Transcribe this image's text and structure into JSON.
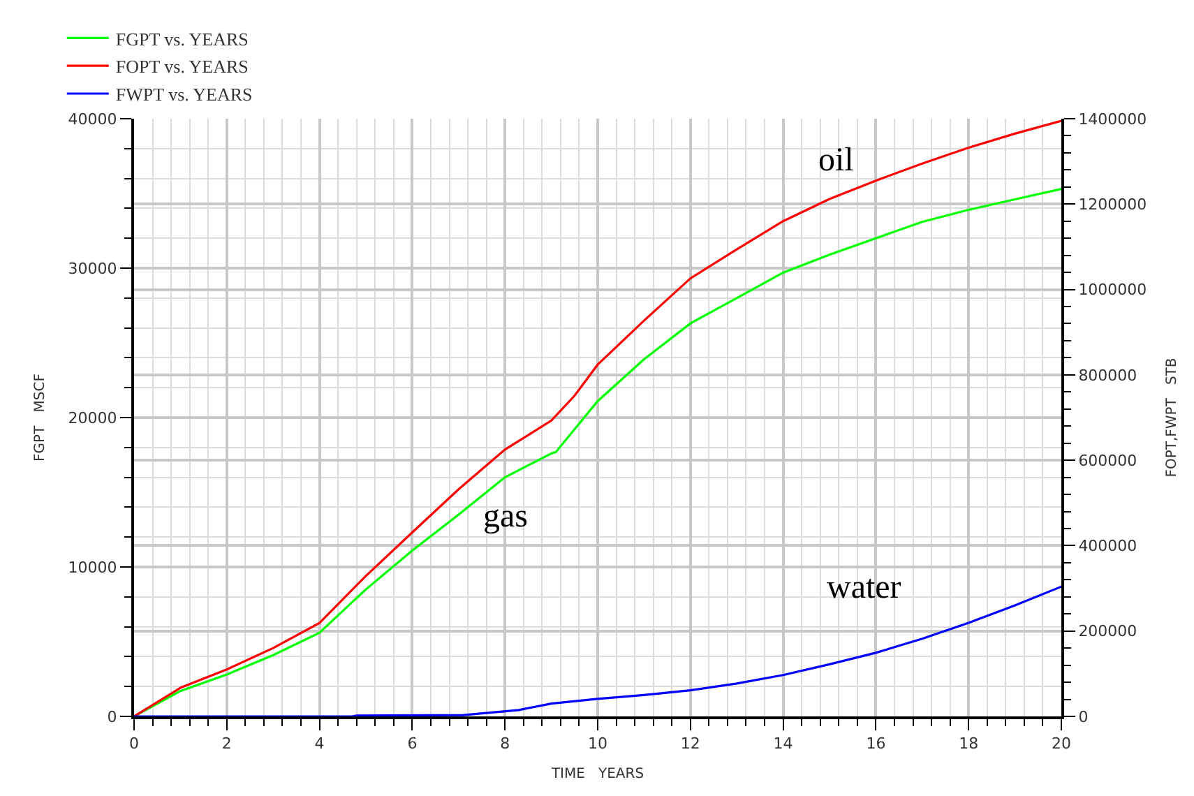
{
  "chart_data": {
    "type": "line",
    "xlabel": "TIME   YEARS",
    "ylabel": "FGPT   MSCF",
    "y2label": "FOPT,FWPT   STB",
    "xlim": [
      0,
      20
    ],
    "xticks": [
      0,
      2,
      4,
      6,
      8,
      10,
      12,
      14,
      16,
      18,
      20
    ],
    "ylim": [
      0,
      40000
    ],
    "yticks": [
      0,
      10000,
      20000,
      30000,
      40000
    ],
    "y2lim": [
      0,
      1400000
    ],
    "y2ticks": [
      0,
      200000,
      400000,
      600000,
      800000,
      1000000,
      1200000,
      1400000
    ],
    "grid": true,
    "legend": "top left",
    "line_style": "solid",
    "marker": "none",
    "series": [
      {
        "name": "FGPT vs. YEARS",
        "color": "#00ff00",
        "x": [
          0,
          1,
          2,
          3,
          4,
          5,
          6,
          7,
          8,
          9,
          9.1,
          10,
          11,
          12,
          13,
          14,
          15,
          16,
          17,
          18,
          19,
          20
        ],
        "values": [
          0,
          1700,
          2800,
          4100,
          5600,
          8500,
          11100,
          13500,
          16000,
          17600,
          17700,
          21100,
          23900,
          26300,
          28000,
          29700,
          30900,
          32000,
          33100,
          33900,
          34600,
          35300
        ]
      },
      {
        "name": "FOPT vs. YEARS",
        "color": "#ff0000",
        "axis": "y2",
        "x": [
          0,
          1,
          2,
          3,
          4,
          5,
          6,
          7,
          8,
          9,
          9.5,
          10,
          11,
          12,
          13,
          14,
          15,
          16,
          17,
          18,
          19,
          20
        ],
        "values": [
          0,
          67000,
          110000,
          160000,
          219000,
          329000,
          431000,
          532000,
          625000,
          693000,
          751000,
          824000,
          927000,
          1026000,
          1094000,
          1160000,
          1212000,
          1255000,
          1295000,
          1332000,
          1365000,
          1395000
        ]
      },
      {
        "name": "FWPT vs. YEARS",
        "color": "#0000ff",
        "axis": "y2",
        "x": [
          0,
          4.7,
          4.8,
          7.1,
          8.3,
          9,
          10,
          11,
          12,
          13,
          14,
          15,
          16,
          17,
          18,
          19,
          20
        ],
        "values": [
          0,
          0,
          2000,
          3000,
          15000,
          30000,
          41000,
          50000,
          61000,
          77000,
          97000,
          122000,
          149000,
          182000,
          219000,
          260000,
          304000
        ]
      }
    ],
    "annotations": [
      "oil",
      "gas",
      "water"
    ]
  }
}
